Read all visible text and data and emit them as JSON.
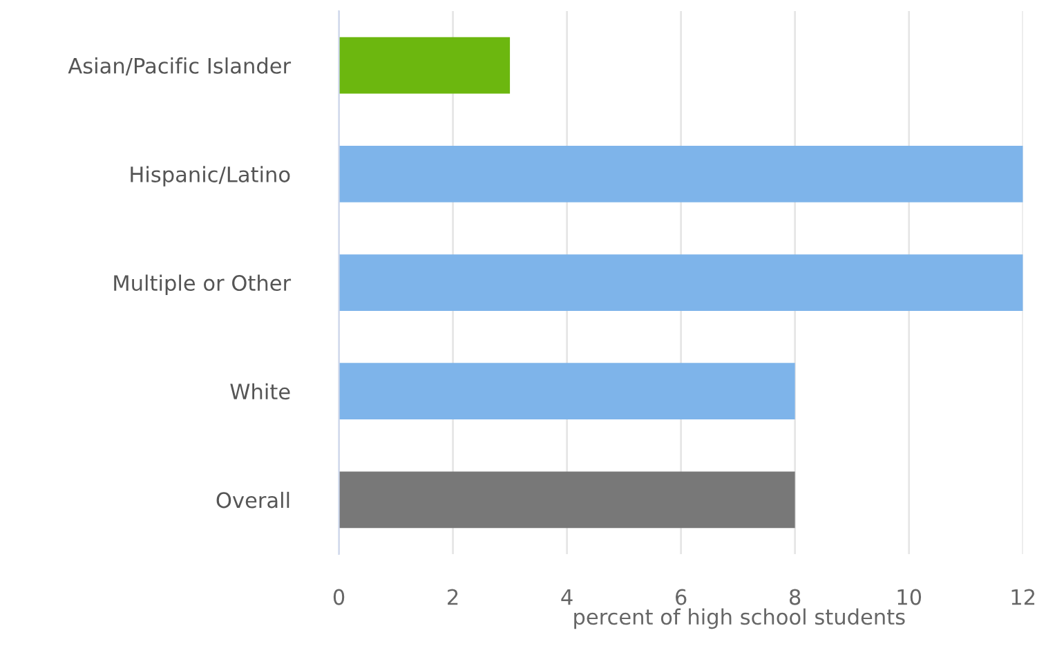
{
  "chart_data": {
    "type": "bar",
    "orientation": "horizontal",
    "xlabel": "percent of high school students",
    "categories": [
      "Asian/Pacific Islander",
      "Hispanic/Latino",
      "Multiple or Other",
      "White",
      "Overall"
    ],
    "values": [
      3,
      12,
      12,
      8,
      8
    ],
    "colors": [
      "#6cb70f",
      "#7eb4ea",
      "#7eb4ea",
      "#7eb4ea",
      "#787878"
    ],
    "xlim": [
      0,
      12
    ],
    "xticks": [
      0,
      2,
      4,
      6,
      8,
      10,
      12
    ],
    "grid": "x",
    "legend": false
  }
}
